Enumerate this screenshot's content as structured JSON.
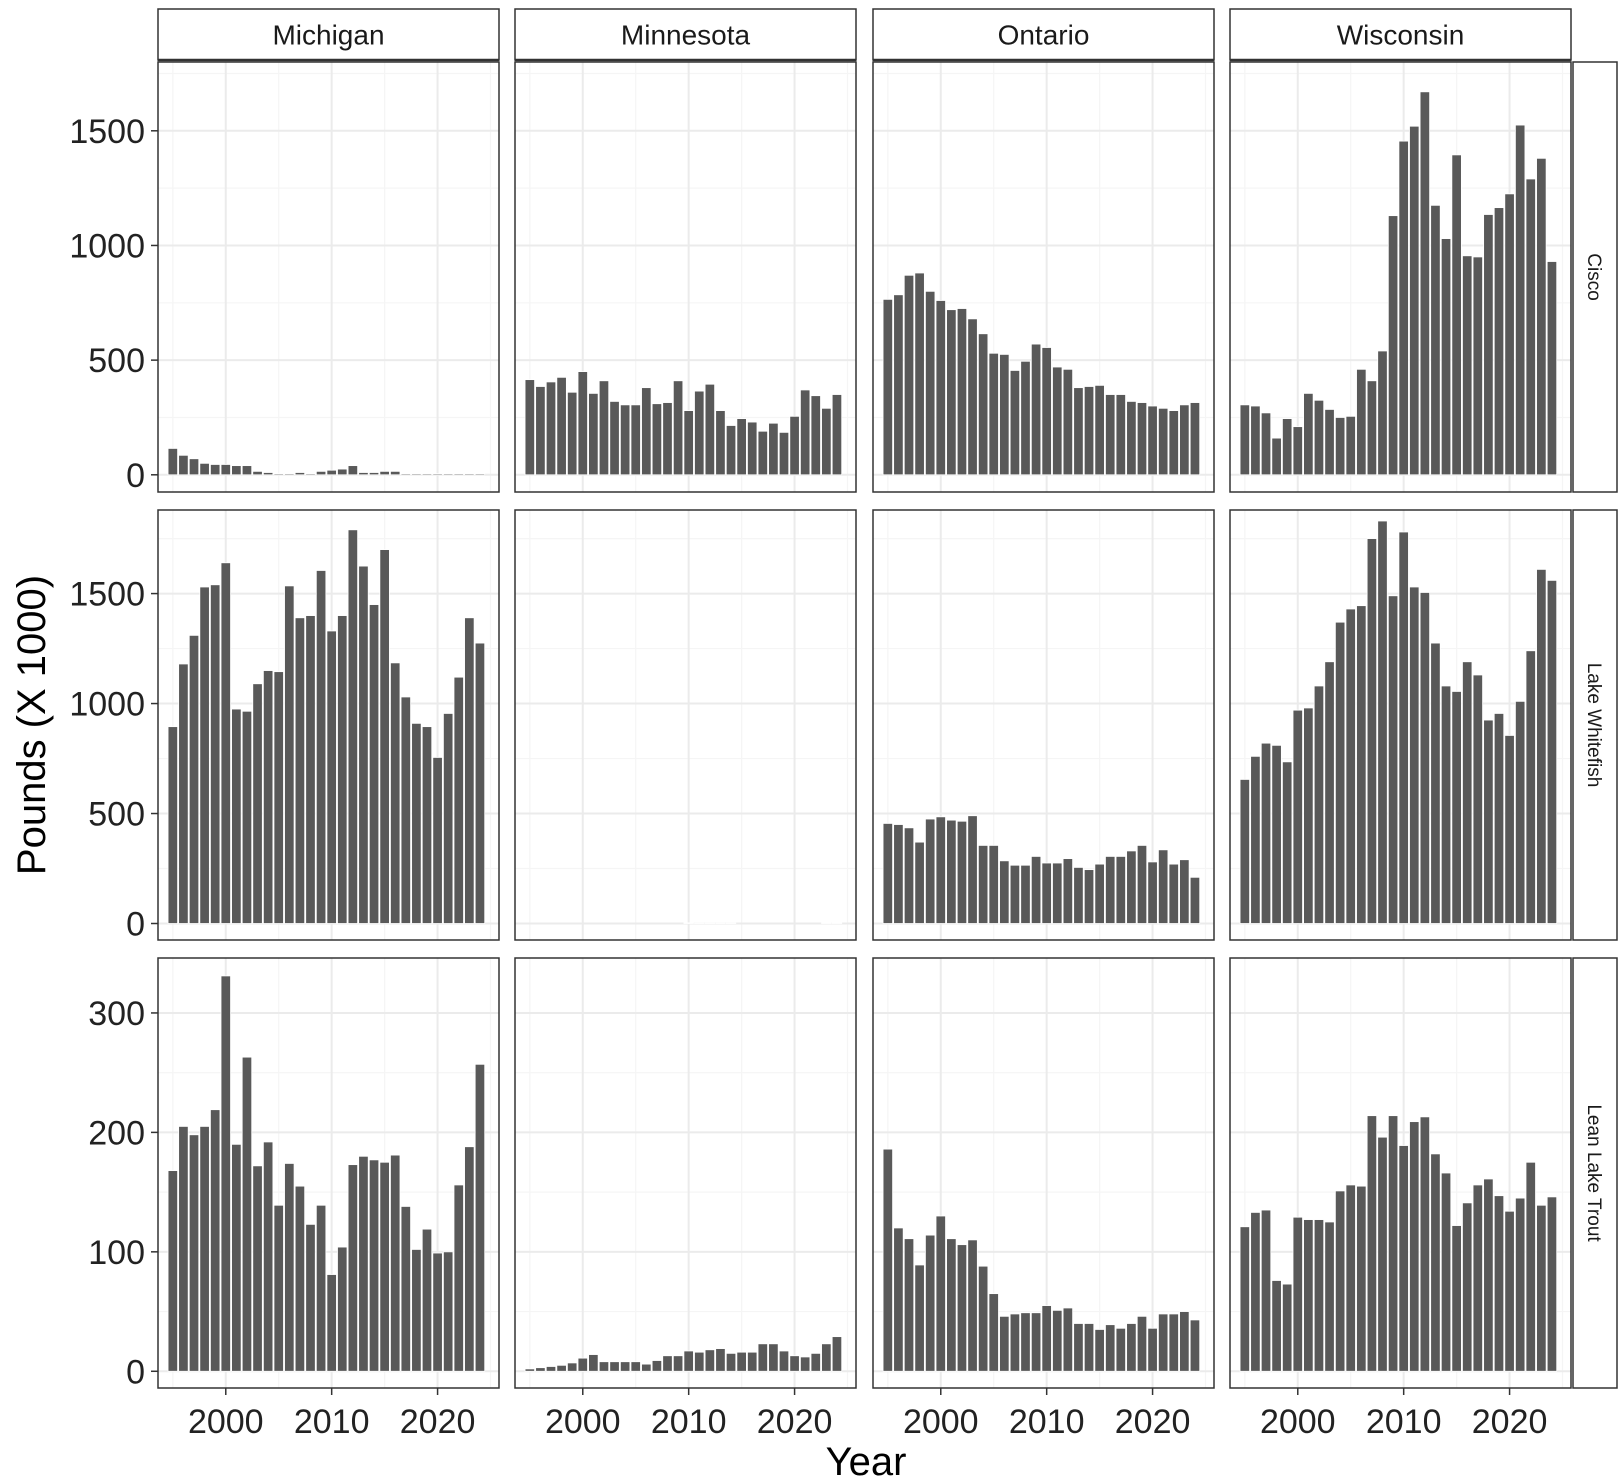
{
  "chart_data": {
    "type": "bar",
    "layout": "facet_grid",
    "xlabel": "Year",
    "ylabel": "Pounds (X 1000)",
    "x": [
      1995,
      1996,
      1997,
      1998,
      1999,
      2000,
      2001,
      2002,
      2003,
      2004,
      2005,
      2006,
      2007,
      2008,
      2009,
      2010,
      2011,
      2012,
      2013,
      2014,
      2015,
      2016,
      2017,
      2018,
      2019,
      2020,
      2021,
      2022,
      2023,
      2024
    ],
    "x_ticks": [
      2000,
      2010,
      2020
    ],
    "x_tick_labels": [
      "2000",
      "2010",
      "2020"
    ],
    "xlim": [
      1993.6,
      2025.8
    ],
    "columns": [
      "Michigan",
      "Minnesota",
      "Ontario",
      "Wisconsin"
    ],
    "rows": [
      {
        "label": "Cisco",
        "ylim": [
          -75,
          1800
        ],
        "y_ticks": [
          0,
          500,
          1000,
          1500
        ],
        "y_tick_labels": [
          "0",
          "500",
          "1000",
          "1500"
        ]
      },
      {
        "label": "Lake Whitefish",
        "ylim": [
          -75,
          1880
        ],
        "y_ticks": [
          0,
          500,
          1000,
          1500
        ],
        "y_tick_labels": [
          "0",
          "500",
          "1000",
          "1500"
        ]
      },
      {
        "label": "Lean Lake Trout",
        "ylim": [
          -14,
          346
        ],
        "y_ticks": [
          0,
          100,
          200,
          300
        ],
        "y_tick_labels": [
          "0",
          "100",
          "200",
          "300"
        ]
      }
    ],
    "panels": [
      {
        "row": "Cisco",
        "column": "Michigan",
        "values": [
          115,
          85,
          70,
          50,
          45,
          45,
          40,
          40,
          15,
          10,
          5,
          5,
          10,
          5,
          15,
          20,
          25,
          40,
          10,
          10,
          15,
          15,
          5,
          5,
          5,
          5,
          5,
          5,
          5,
          5
        ]
      },
      {
        "row": "Cisco",
        "column": "Minnesota",
        "values": [
          415,
          385,
          405,
          425,
          360,
          450,
          355,
          410,
          320,
          305,
          305,
          380,
          310,
          315,
          410,
          280,
          365,
          395,
          280,
          215,
          245,
          230,
          190,
          225,
          185,
          255,
          370,
          345,
          290,
          350
        ]
      },
      {
        "row": "Cisco",
        "column": "Ontario",
        "values": [
          765,
          785,
          870,
          880,
          800,
          760,
          720,
          725,
          680,
          615,
          530,
          525,
          455,
          495,
          570,
          555,
          470,
          460,
          380,
          385,
          390,
          350,
          350,
          320,
          315,
          300,
          290,
          280,
          305,
          315
        ]
      },
      {
        "row": "Cisco",
        "column": "Wisconsin",
        "values": [
          305,
          300,
          270,
          160,
          245,
          210,
          355,
          325,
          285,
          250,
          255,
          460,
          410,
          540,
          1130,
          1455,
          1520,
          1670,
          1175,
          1030,
          1395,
          955,
          950,
          1135,
          1165,
          1225,
          1525,
          1290,
          1380,
          930
        ]
      },
      {
        "row": "Lake Whitefish",
        "column": "Michigan",
        "values": [
          895,
          1180,
          1310,
          1530,
          1540,
          1640,
          975,
          965,
          1090,
          1150,
          1145,
          1535,
          1390,
          1400,
          1605,
          1330,
          1400,
          1790,
          1625,
          1450,
          1700,
          1185,
          1030,
          910,
          895,
          755,
          955,
          1120,
          1390,
          1275
        ]
      },
      {
        "row": "Lake Whitefish",
        "column": "Minnesota",
        "values": [
          0,
          0,
          0,
          0,
          0,
          0,
          0,
          0,
          0,
          0,
          0,
          0,
          0,
          0,
          0,
          3,
          2,
          2,
          2,
          2,
          0,
          0,
          0,
          0,
          0,
          0,
          0,
          0,
          3,
          3
        ]
      },
      {
        "row": "Lake Whitefish",
        "column": "Ontario",
        "values": [
          455,
          450,
          435,
          370,
          475,
          485,
          470,
          465,
          490,
          355,
          355,
          285,
          265,
          265,
          305,
          275,
          275,
          295,
          255,
          245,
          270,
          305,
          305,
          330,
          355,
          280,
          335,
          270,
          290,
          210
        ]
      },
      {
        "row": "Lake Whitefish",
        "column": "Wisconsin",
        "values": [
          655,
          760,
          820,
          810,
          735,
          970,
          980,
          1080,
          1190,
          1370,
          1430,
          1445,
          1750,
          1830,
          1490,
          1780,
          1530,
          1505,
          1275,
          1080,
          1055,
          1190,
          1130,
          925,
          955,
          855,
          1010,
          1240,
          1610,
          1560
        ]
      },
      {
        "row": "Lean Lake Trout",
        "column": "Michigan",
        "values": [
          168,
          205,
          198,
          205,
          219,
          331,
          190,
          263,
          172,
          192,
          139,
          174,
          155,
          123,
          139,
          81,
          104,
          173,
          180,
          177,
          175,
          181,
          138,
          102,
          119,
          99,
          100,
          156,
          188,
          257
        ]
      },
      {
        "row": "Lean Lake Trout",
        "column": "Minnesota",
        "values": [
          2,
          3,
          4,
          5,
          7,
          11,
          14,
          8,
          8,
          8,
          8,
          6,
          9,
          13,
          13,
          17,
          16,
          18,
          19,
          15,
          16,
          16,
          23,
          23,
          17,
          13,
          12,
          15,
          23,
          29
        ]
      },
      {
        "row": "Lean Lake Trout",
        "column": "Ontario",
        "values": [
          186,
          120,
          111,
          89,
          114,
          130,
          111,
          106,
          110,
          88,
          65,
          46,
          48,
          49,
          49,
          55,
          51,
          53,
          40,
          40,
          35,
          39,
          36,
          40,
          46,
          36,
          48,
          48,
          50,
          43
        ]
      },
      {
        "row": "Lean Lake Trout",
        "column": "Wisconsin",
        "values": [
          121,
          133,
          135,
          76,
          73,
          129,
          127,
          127,
          125,
          151,
          156,
          155,
          214,
          196,
          214,
          189,
          209,
          213,
          182,
          166,
          122,
          141,
          156,
          161,
          147,
          134,
          145,
          175,
          139,
          146
        ]
      }
    ]
  },
  "colors": {
    "bar": "#595959",
    "bar_outline": "#ffffff",
    "grid_major": "#ebebeb",
    "grid_minor": "#f5f5f5",
    "panel_border": "#333333",
    "strip_fill": "#ffffff"
  }
}
